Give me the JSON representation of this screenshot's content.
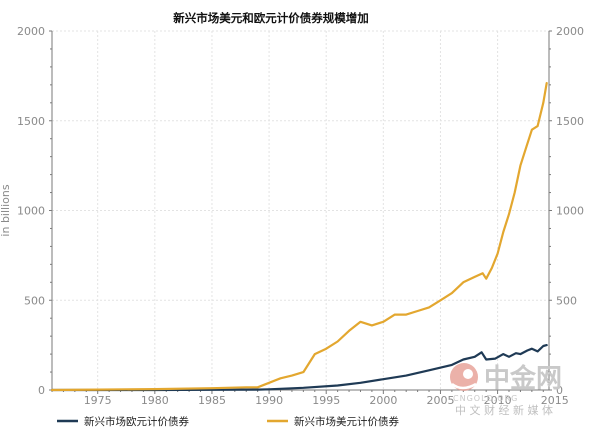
{
  "chart_data": {
    "type": "line",
    "title": "新兴市场美元和欧元计价债券规模增加",
    "xlabel": "",
    "ylabel": "in billions",
    "xlim": [
      1971,
      2014.5
    ],
    "ylim": [
      0,
      2000
    ],
    "x_ticks": [
      1975,
      1980,
      1985,
      1990,
      1995,
      2000,
      2005,
      2010,
      2015
    ],
    "x_tick_labels": [
      "1975",
      "1980",
      "1985",
      "1990",
      "1995",
      "2000",
      "2005",
      "2010",
      "2015"
    ],
    "y_ticks": [
      0,
      500,
      1000,
      1500,
      2000
    ],
    "y_tick_labels": [
      "0",
      "500",
      "1000",
      "1500",
      "2000"
    ],
    "grid": true,
    "legend_position": "bottom",
    "series": [
      {
        "name": "新兴市场欧元计价债券",
        "color": "#1f3a55",
        "x": [
          1971,
          1975,
          1980,
          1985,
          1989,
          1990,
          1993,
          1996,
          1998,
          2000,
          2002,
          2004,
          2006,
          2007,
          2008,
          2008.6,
          2009,
          2009.8,
          2010.5,
          2011,
          2011.6,
          2012,
          2012.6,
          2013,
          2013.5,
          2014,
          2014.3
        ],
        "values": [
          0,
          0,
          0,
          1,
          2,
          4,
          12,
          25,
          40,
          60,
          80,
          110,
          140,
          170,
          185,
          210,
          170,
          175,
          200,
          185,
          205,
          200,
          220,
          230,
          215,
          245,
          250
        ]
      },
      {
        "name": "新兴市场美元计价债券",
        "color": "#e3a72f",
        "x": [
          1971,
          1975,
          1980,
          1985,
          1988,
          1989,
          1990,
          1991,
          1992,
          1993,
          1993.5,
          1994,
          1995,
          1996,
          1997,
          1998,
          1999,
          2000,
          2001,
          2002,
          2003,
          2004,
          2005,
          2006,
          2007,
          2008,
          2008.7,
          2009,
          2009.5,
          2010,
          2010.5,
          2011,
          2011.5,
          2012,
          2012.5,
          2013,
          2013.5,
          2014,
          2014.3
        ],
        "values": [
          0,
          2,
          5,
          10,
          15,
          15,
          40,
          65,
          80,
          100,
          150,
          200,
          230,
          270,
          330,
          380,
          360,
          380,
          420,
          420,
          440,
          460,
          500,
          540,
          600,
          630,
          650,
          620,
          680,
          760,
          880,
          980,
          1100,
          1250,
          1350,
          1450,
          1470,
          1600,
          1710
        ]
      }
    ]
  },
  "watermark": {
    "brand": "中金网",
    "url": "CNGOLD.ORG",
    "tagline": "中 文 财 经 新 媒 体",
    "logo_color": "#e8a39a"
  }
}
